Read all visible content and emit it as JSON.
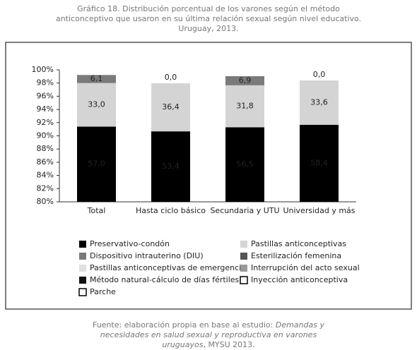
{
  "chart_data": {
    "type": "stacked_bar",
    "title": "Gráfico 18. Distribución porcentual de los varones según el método anticonceptivo que usaron en su última relación sexual según nivel educativo. Uruguay, 2013.",
    "categories": [
      "Total",
      "Hasta ciclo básico",
      "Secundaria y UTU",
      "Universidad y más"
    ],
    "series": [
      {
        "name": "Preservativo-condón",
        "color": "#000000",
        "values": [
          57.0,
          53.4,
          56.5,
          58.4
        ],
        "value_labels": [
          "57,0",
          "53,4",
          "56,5",
          "58,4"
        ]
      },
      {
        "name": "Pastillas anticonceptivas",
        "color": "#d4d4d4",
        "values": [
          33.0,
          36.4,
          31.8,
          33.6
        ],
        "value_labels": [
          "33,0",
          "36,4",
          "31,8",
          "33,6"
        ]
      },
      {
        "name": "Dispositivo intrauterino (DIU)",
        "color": "#7a7a7a",
        "values": [
          6.1,
          0.0,
          6.9,
          0.0
        ],
        "value_labels": [
          "6,1",
          "0,0",
          "6,9",
          "0,0"
        ]
      },
      {
        "name": "Esterilización femenina",
        "color": "#555555",
        "values": [
          null,
          null,
          null,
          null
        ]
      },
      {
        "name": "Pastillas anticonceptivas de emergencia",
        "color": "#e0e0e0",
        "values": [
          null,
          null,
          null,
          null
        ]
      },
      {
        "name": "Interrupción del acto sexual",
        "color": "#999999",
        "values": [
          null,
          null,
          null,
          null
        ]
      },
      {
        "name": "Método natural-cálculo de días fértiles",
        "color": "#111111",
        "values": [
          null,
          null,
          null,
          null
        ]
      },
      {
        "name": "Inyección anticonceptiva",
        "color": "#ffffff",
        "values": [
          null,
          null,
          null,
          null
        ]
      },
      {
        "name": "Parche",
        "color": "#ffffff",
        "values": [
          null,
          null,
          null,
          null
        ]
      }
    ],
    "ylim": [
      0,
      100
    ],
    "yticks": [
      {
        "value": 0,
        "label": "80%"
      },
      {
        "value": 10,
        "label": "82%"
      },
      {
        "value": 20,
        "label": "84%"
      },
      {
        "value": 30,
        "label": "86%"
      },
      {
        "value": 40,
        "label": "88%"
      },
      {
        "value": 50,
        "label": "90%"
      },
      {
        "value": 60,
        "label": "92%"
      },
      {
        "value": 70,
        "label": "94%"
      },
      {
        "value": 80,
        "label": "96%"
      },
      {
        "value": 90,
        "label": "98%"
      },
      {
        "value": 100,
        "label": "100%"
      }
    ],
    "grid": false,
    "source": {
      "prefix": "Fuente: elaboración propia en base al estudio: ",
      "italic": "Demandas y necesidades en salud sexual y reproductiva en varones uruguayos",
      "suffix": ", MYSU 2013."
    }
  }
}
